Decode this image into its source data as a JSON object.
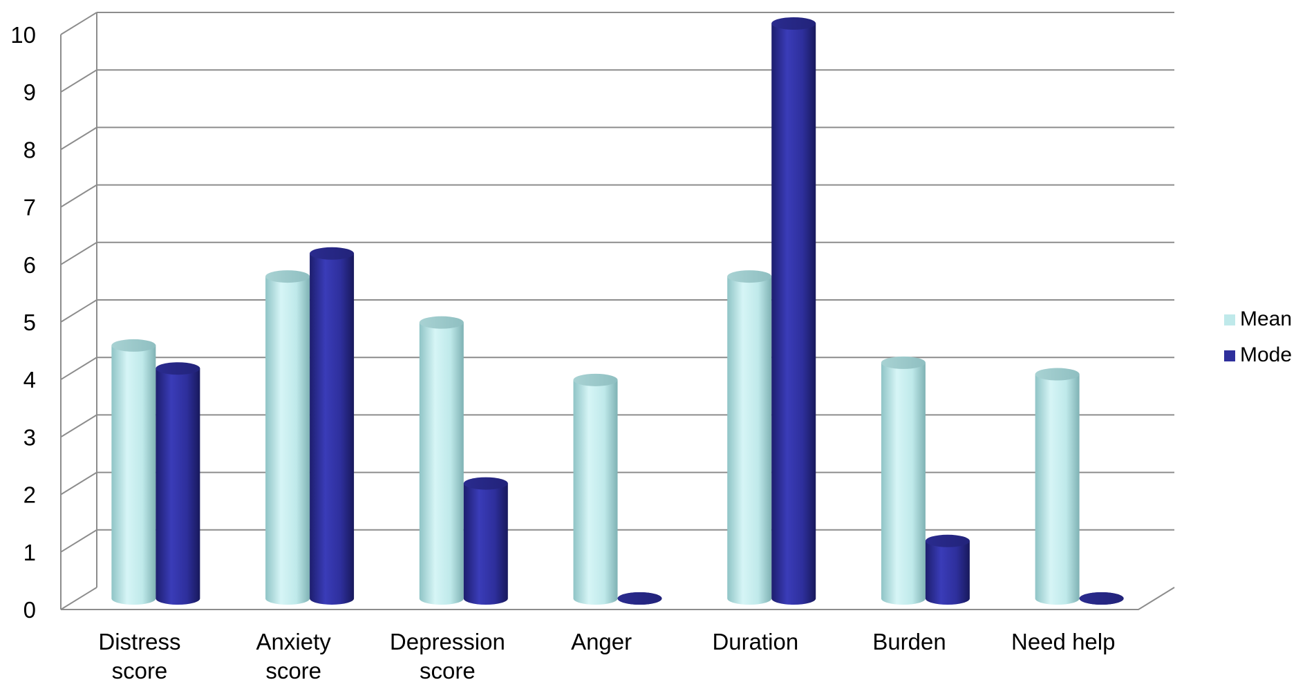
{
  "chart_data": {
    "type": "bar",
    "title": "",
    "xlabel": "",
    "ylabel": "",
    "ylim": [
      0,
      10
    ],
    "yticks": [
      "0",
      "1",
      "2",
      "3",
      "4",
      "5",
      "6",
      "7",
      "8",
      "9",
      "10"
    ],
    "grid": true,
    "legend_position": "right",
    "categories": [
      [
        "Distress",
        "score"
      ],
      [
        "Anxiety",
        "score"
      ],
      [
        "Depression",
        "score"
      ],
      [
        "Anger"
      ],
      [
        "Duration"
      ],
      [
        "Burden"
      ],
      [
        "Need help"
      ]
    ],
    "series": [
      {
        "name": "Mean",
        "color": "#bfe9ea",
        "values": [
          4.4,
          5.6,
          4.8,
          3.8,
          5.6,
          4.1,
          3.9
        ]
      },
      {
        "name": "Mode",
        "color": "#2e2f9c",
        "values": [
          4,
          6,
          2,
          0,
          10,
          1,
          0
        ]
      }
    ]
  }
}
